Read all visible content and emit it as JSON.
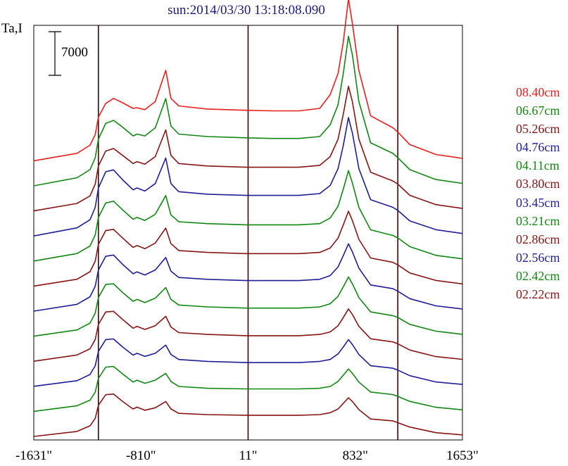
{
  "chart_data": {
    "type": "line",
    "title": "sun:2014/03/30 13:18:08.090",
    "ylabel": "Ta,I",
    "scale_bar_label": "7000",
    "xlabel": "",
    "xlim": [
      -1631,
      1653
    ],
    "x_ticks": [
      "-1631\"",
      "-810\"",
      "11\"",
      "832\"",
      "1653\""
    ],
    "x_tick_values": [
      -1631,
      -810,
      11,
      832,
      1653
    ],
    "vertical_lines": [
      -1136,
      11,
      1158
    ],
    "grid": false,
    "legend_position": "right",
    "x": [
      -1631,
      -1300,
      -1200,
      -1160,
      -1136,
      -1080,
      -1020,
      -950,
      -870,
      -840,
      -780,
      -700,
      -620,
      -580,
      -520,
      -300,
      0,
      200,
      400,
      560,
      640,
      700,
      740,
      780,
      810,
      860,
      950,
      1120,
      1158,
      1250,
      1450,
      1653
    ],
    "series": [
      {
        "name": "08.40cm",
        "color": "#e8201e",
        "values": [
          0,
          1200,
          2500,
          4200,
          7000,
          9200,
          10000,
          9300,
          8400,
          8500,
          8200,
          9500,
          14500,
          10000,
          8800,
          8300,
          8100,
          8000,
          8000,
          8400,
          10600,
          14000,
          19000,
          26000,
          22000,
          14500,
          7200,
          5300,
          4600,
          2600,
          1000,
          400
        ]
      },
      {
        "name": "06.67cm",
        "color": "#118811",
        "values": [
          0,
          1300,
          2600,
          4500,
          7500,
          10000,
          10500,
          9400,
          8000,
          8300,
          8000,
          9300,
          14000,
          9600,
          8300,
          7900,
          7700,
          7600,
          7600,
          7900,
          9800,
          13000,
          18000,
          24000,
          21000,
          13500,
          6900,
          5200,
          4500,
          2600,
          1000,
          400
        ]
      },
      {
        "name": "05.26cm",
        "color": "#881414",
        "values": [
          0,
          1200,
          2400,
          4300,
          7200,
          9600,
          10000,
          8900,
          7600,
          7900,
          7500,
          8700,
          13000,
          8900,
          7600,
          7200,
          7000,
          7000,
          7000,
          7300,
          8700,
          11500,
          15500,
          20000,
          17500,
          11500,
          6200,
          4800,
          4300,
          2500,
          1000,
          400
        ]
      },
      {
        "name": "04.76cm",
        "color": "#1e1e9a",
        "values": [
          0,
          1300,
          2600,
          4600,
          7700,
          10300,
          10600,
          9000,
          7400,
          7700,
          7200,
          8400,
          12500,
          8400,
          7100,
          6700,
          6500,
          6500,
          6500,
          6800,
          8100,
          10800,
          14500,
          19000,
          16500,
          10800,
          5800,
          4600,
          4100,
          2400,
          1000,
          400
        ]
      },
      {
        "name": "04.11cm",
        "color": "#118811",
        "values": [
          0,
          1200,
          2400,
          4200,
          7000,
          9300,
          9600,
          8200,
          6700,
          7000,
          6500,
          7500,
          10500,
          7400,
          6300,
          6000,
          5800,
          5800,
          5800,
          6000,
          6900,
          8800,
          11500,
          14500,
          12500,
          8600,
          5000,
          4100,
          3700,
          2300,
          900,
          350
        ]
      },
      {
        "name": "03.80cm",
        "color": "#881414",
        "values": [
          0,
          1100,
          2300,
          4000,
          6700,
          8900,
          9100,
          7700,
          6200,
          6500,
          6000,
          6900,
          9300,
          6800,
          5700,
          5400,
          5200,
          5200,
          5200,
          5400,
          6100,
          7700,
          9800,
          12000,
          10500,
          7500,
          4500,
          3800,
          3400,
          2100,
          900,
          350
        ]
      },
      {
        "name": "03.45cm",
        "color": "#1e1e9a",
        "values": [
          0,
          1100,
          2300,
          4000,
          6600,
          8800,
          9000,
          7500,
          6000,
          6300,
          5800,
          6600,
          8600,
          6400,
          5400,
          5100,
          4900,
          4900,
          4900,
          5100,
          5700,
          7100,
          8900,
          10800,
          9500,
          6900,
          4200,
          3600,
          3200,
          2000,
          850,
          350
        ]
      },
      {
        "name": "03.21cm",
        "color": "#118811",
        "values": [
          0,
          1000,
          2100,
          3700,
          6200,
          8300,
          8400,
          7000,
          5600,
          5900,
          5400,
          6100,
          7800,
          5900,
          5000,
          4700,
          4500,
          4500,
          4500,
          4700,
          5200,
          6400,
          7900,
          9500,
          8400,
          6200,
          3900,
          3300,
          3000,
          1900,
          800,
          300
        ]
      },
      {
        "name": "02.86cm",
        "color": "#881414",
        "values": [
          0,
          1000,
          2000,
          3500,
          5900,
          7900,
          8000,
          6700,
          5300,
          5600,
          5100,
          5700,
          7200,
          5500,
          4600,
          4300,
          4100,
          4100,
          4100,
          4300,
          4700,
          5700,
          7000,
          8400,
          7500,
          5600,
          3600,
          3100,
          2800,
          1800,
          750,
          300
        ]
      },
      {
        "name": "02.56cm",
        "color": "#1e1e9a",
        "values": [
          0,
          900,
          1900,
          3300,
          5600,
          7500,
          7600,
          6300,
          5000,
          5300,
          4800,
          5300,
          6600,
          5100,
          4300,
          4000,
          3800,
          3800,
          3800,
          4000,
          4300,
          5200,
          6300,
          7500,
          6700,
          5100,
          3300,
          2900,
          2600,
          1700,
          700,
          300
        ]
      },
      {
        "name": "02.42cm",
        "color": "#118811",
        "values": [
          0,
          900,
          1800,
          3100,
          5300,
          7100,
          7200,
          6000,
          4700,
          5000,
          4500,
          5000,
          6100,
          4800,
          4000,
          3700,
          3600,
          3600,
          3600,
          3700,
          4000,
          4800,
          5800,
          6800,
          6100,
          4700,
          3100,
          2700,
          2400,
          1600,
          650,
          250
        ]
      },
      {
        "name": "02.22cm",
        "color": "#881414",
        "values": [
          0,
          800,
          1700,
          2900,
          5000,
          6700,
          6800,
          5600,
          4400,
          4700,
          4200,
          4600,
          5600,
          4400,
          3700,
          3500,
          3400,
          3400,
          3400,
          3500,
          3800,
          4400,
          5300,
          6200,
          5600,
          4300,
          2800,
          2500,
          2200,
          1500,
          600,
          250
        ]
      }
    ]
  }
}
